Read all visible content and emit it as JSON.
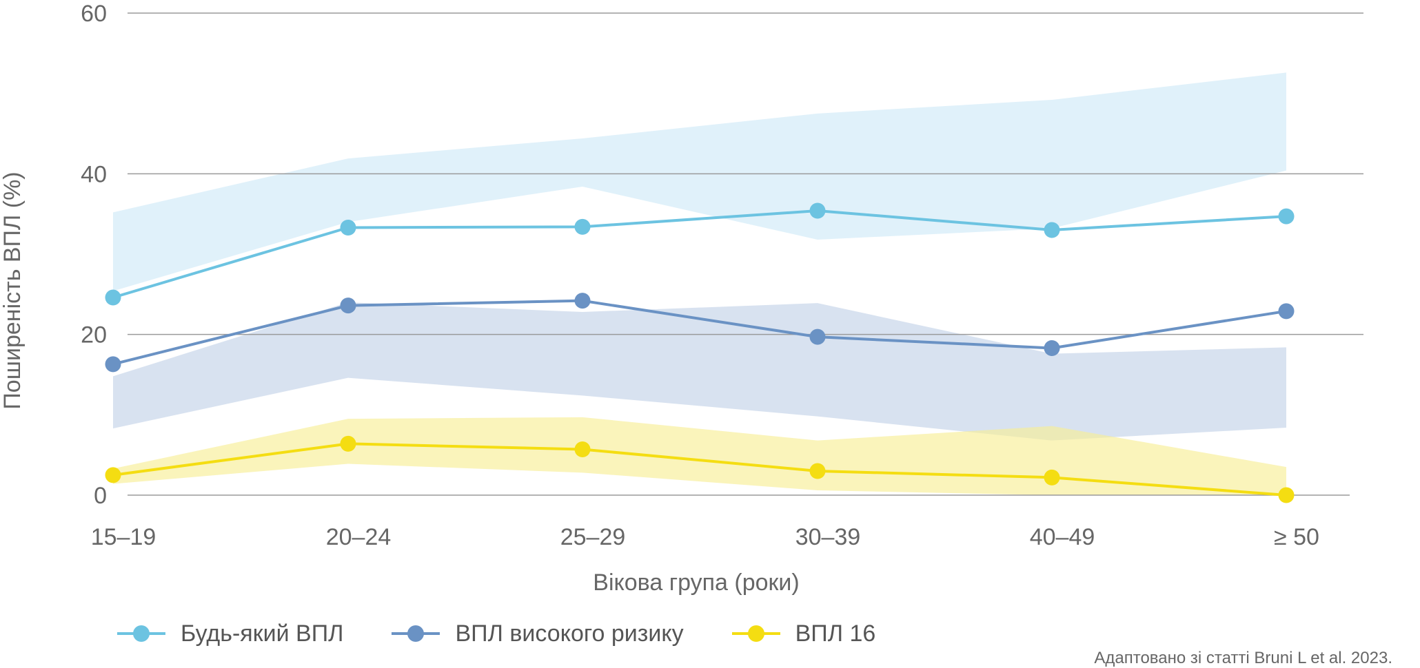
{
  "chart_data": {
    "type": "line",
    "title": "",
    "xlabel": "Вікова група (роки)",
    "ylabel": "Поширеність ВПЛ (%)",
    "ylim": [
      0,
      60
    ],
    "yticks": [
      0,
      20,
      40,
      60
    ],
    "grid": true,
    "categories": [
      "15–19",
      "20–24",
      "25–29",
      "30–39",
      "40–49",
      "≥ 50"
    ],
    "series": [
      {
        "name": "Будь-який ВПЛ",
        "color": "#6cc3e1",
        "band_color": "#cfe9f7",
        "values": [
          24.6,
          33.3,
          33.4,
          35.4,
          33.0,
          34.7
        ],
        "band_upper": [
          35.2,
          41.9,
          44.4,
          47.5,
          49.2,
          52.6
        ],
        "band_lower": [
          25.4,
          34.0,
          38.4,
          31.8,
          33.2,
          40.4
        ]
      },
      {
        "name": "ВПЛ високого ризику",
        "color": "#6a92c4",
        "band_color": "#c3d3e8",
        "values": [
          16.3,
          23.6,
          24.2,
          19.7,
          18.3,
          22.9
        ],
        "band_upper": [
          14.8,
          24.0,
          22.8,
          23.9,
          17.6,
          18.4
        ],
        "band_lower": [
          8.3,
          14.6,
          12.4,
          9.8,
          6.8,
          8.4
        ]
      },
      {
        "name": "ВПЛ 16",
        "color": "#f4dd12",
        "band_color": "#f8ee96",
        "values": [
          2.5,
          6.4,
          5.7,
          3.0,
          2.2,
          0.0
        ],
        "band_upper": [
          3.3,
          9.5,
          9.7,
          6.8,
          8.6,
          3.5
        ],
        "band_lower": [
          1.4,
          3.9,
          2.8,
          0.6,
          0.0,
          0.0
        ]
      }
    ]
  },
  "source": "Адаптовано зі статті Bruni L et al. 2023."
}
